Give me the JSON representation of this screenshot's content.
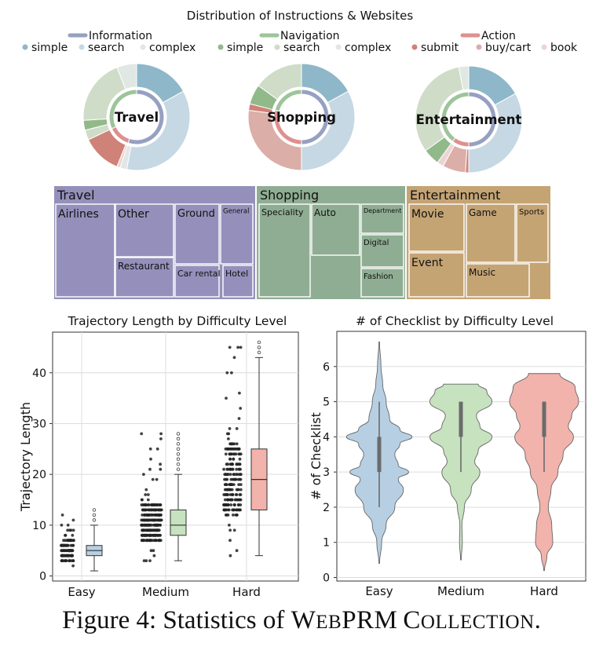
{
  "figure": {
    "caption_prefix": "Figure 4: Statistics of ",
    "caption_name": "WebPRM Collection",
    "caption_suffix": "."
  },
  "chart_data": [
    {
      "type": "pie",
      "title": "Distribution of Instructions & Websites",
      "legend_groups": [
        {
          "name": "Information",
          "color": "#96a0c2",
          "items": [
            {
              "name": "simple",
              "color": "#8eb7c9"
            },
            {
              "name": "search",
              "color": "#c5d8e3"
            },
            {
              "name": "complex",
              "color": "#e2e6e8"
            }
          ]
        },
        {
          "name": "Navigation",
          "color": "#9ec49a",
          "items": [
            {
              "name": "simple",
              "color": "#92b98a"
            },
            {
              "name": "search",
              "color": "#cfdcc8"
            },
            {
              "name": "complex",
              "color": "#dfe8e3"
            }
          ]
        },
        {
          "name": "Action",
          "color": "#e08f8f",
          "items": [
            {
              "name": "submit",
              "color": "#cf8278"
            },
            {
              "name": "buy/cart",
              "color": "#dcaea8"
            },
            {
              "name": "book",
              "color": "#ecd4d2"
            }
          ]
        }
      ],
      "donuts": [
        {
          "label": "Travel",
          "outer": [
            {
              "name": "simple",
              "group": "Information",
              "value": 17,
              "color": "#8eb7c9"
            },
            {
              "name": "search",
              "group": "Information",
              "value": 36,
              "color": "#c5d8e3"
            },
            {
              "name": "complex",
              "group": "Information",
              "value": 2,
              "color": "#e2e6e8"
            },
            {
              "name": "book",
              "group": "Action",
              "value": 1,
              "color": "#ecd4d2"
            },
            {
              "name": "submit",
              "group": "Action",
              "value": 12,
              "color": "#cf8278"
            },
            {
              "name": "search",
              "group": "Navigation",
              "value": 3,
              "color": "#cfdcc8"
            },
            {
              "name": "simple",
              "group": "Navigation",
              "value": 3,
              "color": "#92b98a"
            },
            {
              "name": "search",
              "group": "Navigation",
              "value": 20,
              "color": "#cfdcc8"
            },
            {
              "name": "complex",
              "group": "Navigation",
              "value": 6,
              "color": "#dfe8e3"
            }
          ],
          "inner": [
            {
              "name": "Information",
              "value": 55,
              "color": "#96a0c2"
            },
            {
              "name": "Action",
              "value": 13,
              "color": "#e08f8f"
            },
            {
              "name": "Navigation",
              "value": 32,
              "color": "#9ec49a"
            }
          ]
        },
        {
          "label": "Shopping",
          "outer": [
            {
              "name": "simple",
              "group": "Information",
              "value": 17,
              "color": "#8eb7c9"
            },
            {
              "name": "search",
              "group": "Information",
              "value": 33,
              "color": "#c5d8e3"
            },
            {
              "name": "buy/cart",
              "group": "Action",
              "value": 27,
              "color": "#dcaea8"
            },
            {
              "name": "submit",
              "group": "Action",
              "value": 2,
              "color": "#cf8278"
            },
            {
              "name": "simple",
              "group": "Navigation",
              "value": 6,
              "color": "#92b98a"
            },
            {
              "name": "search",
              "group": "Navigation",
              "value": 15,
              "color": "#cfdcc8"
            }
          ],
          "inner": [
            {
              "name": "Information",
              "value": 50,
              "color": "#96a0c2"
            },
            {
              "name": "Action",
              "value": 29,
              "color": "#e08f8f"
            },
            {
              "name": "Navigation",
              "value": 21,
              "color": "#9ec49a"
            }
          ]
        },
        {
          "label": "Entertainment",
          "outer": [
            {
              "name": "simple",
              "group": "Information",
              "value": 17,
              "color": "#8eb7c9"
            },
            {
              "name": "search",
              "group": "Information",
              "value": 33,
              "color": "#c5d8e3"
            },
            {
              "name": "submit",
              "group": "Action",
              "value": 1,
              "color": "#cf8278"
            },
            {
              "name": "buy/cart",
              "group": "Action",
              "value": 7,
              "color": "#dcaea8"
            },
            {
              "name": "book",
              "group": "Action",
              "value": 2,
              "color": "#ecd4d2"
            },
            {
              "name": "simple",
              "group": "Navigation",
              "value": 5,
              "color": "#92b98a"
            },
            {
              "name": "search",
              "group": "Navigation",
              "value": 32,
              "color": "#cfdcc8"
            },
            {
              "name": "complex",
              "group": "Navigation",
              "value": 3,
              "color": "#dfe8e3"
            }
          ],
          "inner": [
            {
              "name": "Information",
              "value": 50,
              "color": "#96a0c2"
            },
            {
              "name": "Action",
              "value": 10,
              "color": "#e08f8f"
            },
            {
              "name": "Navigation",
              "value": 40,
              "color": "#9ec49a"
            }
          ]
        }
      ]
    },
    {
      "type": "treemap",
      "groups": [
        {
          "name": "Travel",
          "color": "#9590bb",
          "items": [
            {
              "name": "Airlines"
            },
            {
              "name": "Other"
            },
            {
              "name": "Restaurant"
            },
            {
              "name": "Ground"
            },
            {
              "name": "Car rental"
            },
            {
              "name": "General"
            },
            {
              "name": "Hotel"
            }
          ]
        },
        {
          "name": "Shopping",
          "color": "#8fad93",
          "items": [
            {
              "name": "Speciality"
            },
            {
              "name": "Auto"
            },
            {
              "name": "Department"
            },
            {
              "name": "Digital"
            },
            {
              "name": "Fashion"
            }
          ]
        },
        {
          "name": "Entertainment",
          "color": "#c5a474",
          "items": [
            {
              "name": "Movie"
            },
            {
              "name": "Game"
            },
            {
              "name": "Sports"
            },
            {
              "name": "Event"
            },
            {
              "name": "Music"
            }
          ]
        }
      ]
    },
    {
      "type": "box",
      "title": "Trajectory Length by Difficulty Level",
      "xlabel": "",
      "ylabel": "Trajectory Length",
      "ylim": [
        -1,
        48
      ],
      "yticks": [
        0,
        10,
        20,
        30,
        40
      ],
      "grid": true,
      "categories": [
        "Easy",
        "Medium",
        "Hard"
      ],
      "boxes": [
        {
          "category": "Easy",
          "color": "#b7cfe2",
          "whisker_low": 1,
          "q1": 4,
          "median": 5,
          "q3": 6,
          "whisker_high": 10,
          "outliers": [
            11,
            12,
            13
          ],
          "points_min": 1,
          "points_max": 13
        },
        {
          "category": "Medium",
          "color": "#c6e2bf",
          "whisker_low": 3,
          "q1": 8,
          "median": 10,
          "q3": 13,
          "whisker_high": 20,
          "outliers": [
            21,
            22,
            23,
            24,
            25,
            26,
            27,
            28
          ],
          "points_min": 3,
          "points_max": 28
        },
        {
          "category": "Hard",
          "color": "#f1b3ab",
          "whisker_low": 4,
          "q1": 13,
          "median": 19,
          "q3": 25,
          "whisker_high": 43,
          "outliers": [
            44,
            45,
            46
          ],
          "points_min": 4,
          "points_max": 46
        }
      ]
    },
    {
      "type": "violin",
      "title": "# of Checklist by Difficulty Level",
      "xlabel": "",
      "ylabel": "# of Checklist",
      "ylim": [
        -0.1,
        7.0
      ],
      "yticks": [
        0,
        1,
        2,
        3,
        4,
        5,
        6
      ],
      "grid": true,
      "categories": [
        "Easy",
        "Medium",
        "Hard"
      ],
      "violins": [
        {
          "category": "Easy",
          "color": "#b7cfe2",
          "min": 0.4,
          "max": 6.7,
          "whisker_low": 2,
          "q1": 3,
          "median": 3.4,
          "q3": 4,
          "whisker_high": 5,
          "profile": [
            [
              0.4,
              0.01
            ],
            [
              1.0,
              0.07
            ],
            [
              1.5,
              0.2
            ],
            [
              2.0,
              0.45
            ],
            [
              2.5,
              0.7
            ],
            [
              2.8,
              0.55
            ],
            [
              3.0,
              0.85
            ],
            [
              3.2,
              0.55
            ],
            [
              3.5,
              0.45
            ],
            [
              3.8,
              0.6
            ],
            [
              4.0,
              0.95
            ],
            [
              4.2,
              0.6
            ],
            [
              4.5,
              0.3
            ],
            [
              5.0,
              0.2
            ],
            [
              5.5,
              0.1
            ],
            [
              6.0,
              0.05
            ],
            [
              6.7,
              0.01
            ]
          ]
        },
        {
          "category": "Medium",
          "color": "#c6e2bf",
          "min": 0.5,
          "max": 5.5,
          "whisker_low": 3,
          "q1": 4,
          "median": 4.5,
          "q3": 5,
          "whisker_high": 5,
          "profile": [
            [
              0.5,
              0.01
            ],
            [
              1.0,
              0.04
            ],
            [
              1.5,
              0.03
            ],
            [
              2.0,
              0.1
            ],
            [
              2.5,
              0.3
            ],
            [
              3.0,
              0.55
            ],
            [
              3.3,
              0.4
            ],
            [
              3.6,
              0.5
            ],
            [
              4.0,
              0.9
            ],
            [
              4.3,
              0.55
            ],
            [
              4.6,
              0.45
            ],
            [
              5.0,
              0.9
            ],
            [
              5.3,
              0.75
            ],
            [
              5.5,
              0.5
            ]
          ]
        },
        {
          "category": "Hard",
          "color": "#f1b3ab",
          "min": 0.2,
          "max": 5.8,
          "whisker_low": 3,
          "q1": 4,
          "median": 4.5,
          "q3": 5,
          "whisker_high": 5,
          "profile": [
            [
              0.2,
              0.01
            ],
            [
              0.6,
              0.08
            ],
            [
              1.0,
              0.25
            ],
            [
              1.5,
              0.22
            ],
            [
              2.0,
              0.12
            ],
            [
              2.5,
              0.2
            ],
            [
              3.0,
              0.4
            ],
            [
              3.5,
              0.55
            ],
            [
              4.0,
              0.85
            ],
            [
              4.3,
              0.7
            ],
            [
              4.6,
              0.8
            ],
            [
              5.0,
              1.0
            ],
            [
              5.4,
              0.9
            ],
            [
              5.8,
              0.45
            ]
          ]
        }
      ]
    }
  ]
}
